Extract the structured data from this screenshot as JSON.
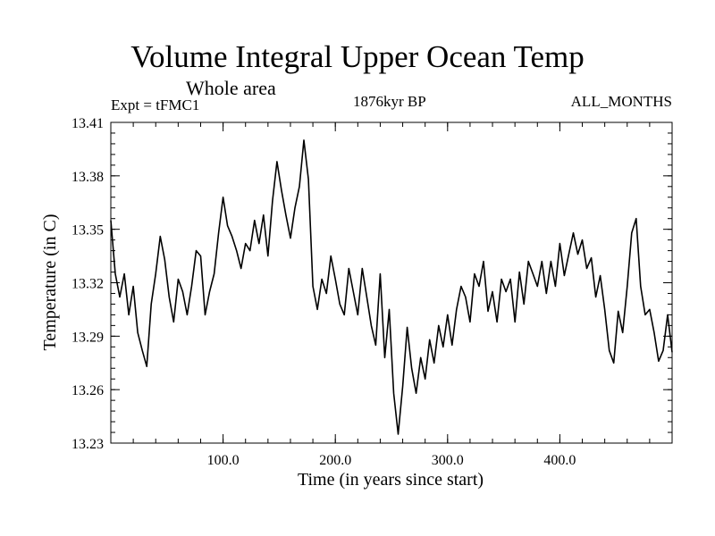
{
  "chart_data": {
    "type": "line",
    "title": "Volume Integral Upper Ocean Temp",
    "subtitle": "Whole area",
    "experiment": "Expt = tFMC1",
    "period": "1876kyr BP",
    "months": "ALL_MONTHS",
    "xlabel": "Time (in years since start)",
    "ylabel": "Temperature (in C)",
    "xlim": [
      0,
      500
    ],
    "ylim": [
      13.23,
      13.41
    ],
    "x_ticks": [
      100,
      200,
      300,
      400
    ],
    "x_tick_labels": [
      "100.0",
      "200.0",
      "300.0",
      "400.0"
    ],
    "y_ticks": [
      13.23,
      13.26,
      13.29,
      13.32,
      13.35,
      13.38,
      13.41
    ],
    "y_tick_labels": [
      "13.23",
      "13.26",
      "13.29",
      "13.32",
      "13.35",
      "13.38",
      "13.41"
    ],
    "grid": false,
    "series": [
      {
        "name": "Temperature",
        "color": "#000000",
        "x": [
          0,
          4,
          8,
          12,
          16,
          20,
          24,
          28,
          32,
          36,
          40,
          44,
          48,
          52,
          56,
          60,
          64,
          68,
          72,
          76,
          80,
          84,
          88,
          92,
          96,
          100,
          104,
          108,
          112,
          116,
          120,
          124,
          128,
          132,
          136,
          140,
          144,
          148,
          152,
          156,
          160,
          164,
          168,
          172,
          176,
          180,
          184,
          188,
          192,
          196,
          200,
          204,
          208,
          212,
          216,
          220,
          224,
          228,
          232,
          236,
          240,
          244,
          248,
          252,
          256,
          260,
          264,
          268,
          272,
          276,
          280,
          284,
          288,
          292,
          296,
          300,
          304,
          308,
          312,
          316,
          320,
          324,
          328,
          332,
          336,
          340,
          344,
          348,
          352,
          356,
          360,
          364,
          368,
          372,
          376,
          380,
          384,
          388,
          392,
          396,
          400,
          404,
          408,
          412,
          416,
          420,
          424,
          428,
          432,
          436,
          440,
          444,
          448,
          452,
          456,
          460,
          464,
          468,
          472,
          476,
          480,
          484,
          488,
          492,
          496,
          500
        ],
        "values": [
          13.355,
          13.325,
          13.312,
          13.325,
          13.302,
          13.318,
          13.292,
          13.282,
          13.273,
          13.308,
          13.325,
          13.346,
          13.333,
          13.312,
          13.298,
          13.322,
          13.315,
          13.302,
          13.318,
          13.338,
          13.335,
          13.302,
          13.315,
          13.325,
          13.348,
          13.368,
          13.352,
          13.346,
          13.338,
          13.328,
          13.342,
          13.338,
          13.355,
          13.342,
          13.358,
          13.335,
          13.366,
          13.388,
          13.372,
          13.358,
          13.345,
          13.362,
          13.374,
          13.4,
          13.378,
          13.318,
          13.305,
          13.322,
          13.314,
          13.335,
          13.322,
          13.308,
          13.302,
          13.328,
          13.315,
          13.302,
          13.328,
          13.312,
          13.296,
          13.285,
          13.325,
          13.278,
          13.305,
          13.258,
          13.235,
          13.262,
          13.295,
          13.272,
          13.258,
          13.278,
          13.266,
          13.288,
          13.275,
          13.296,
          13.284,
          13.302,
          13.285,
          13.305,
          13.318,
          13.312,
          13.298,
          13.325,
          13.318,
          13.332,
          13.304,
          13.315,
          13.298,
          13.322,
          13.315,
          13.322,
          13.298,
          13.326,
          13.308,
          13.332,
          13.325,
          13.318,
          13.332,
          13.314,
          13.332,
          13.318,
          13.342,
          13.324,
          13.336,
          13.348,
          13.336,
          13.344,
          13.328,
          13.334,
          13.312,
          13.324,
          13.305,
          13.282,
          13.275,
          13.304,
          13.292,
          13.318,
          13.348,
          13.356,
          13.318,
          13.302,
          13.305,
          13.292,
          13.276,
          13.282,
          13.302,
          13.281
        ]
      }
    ]
  }
}
